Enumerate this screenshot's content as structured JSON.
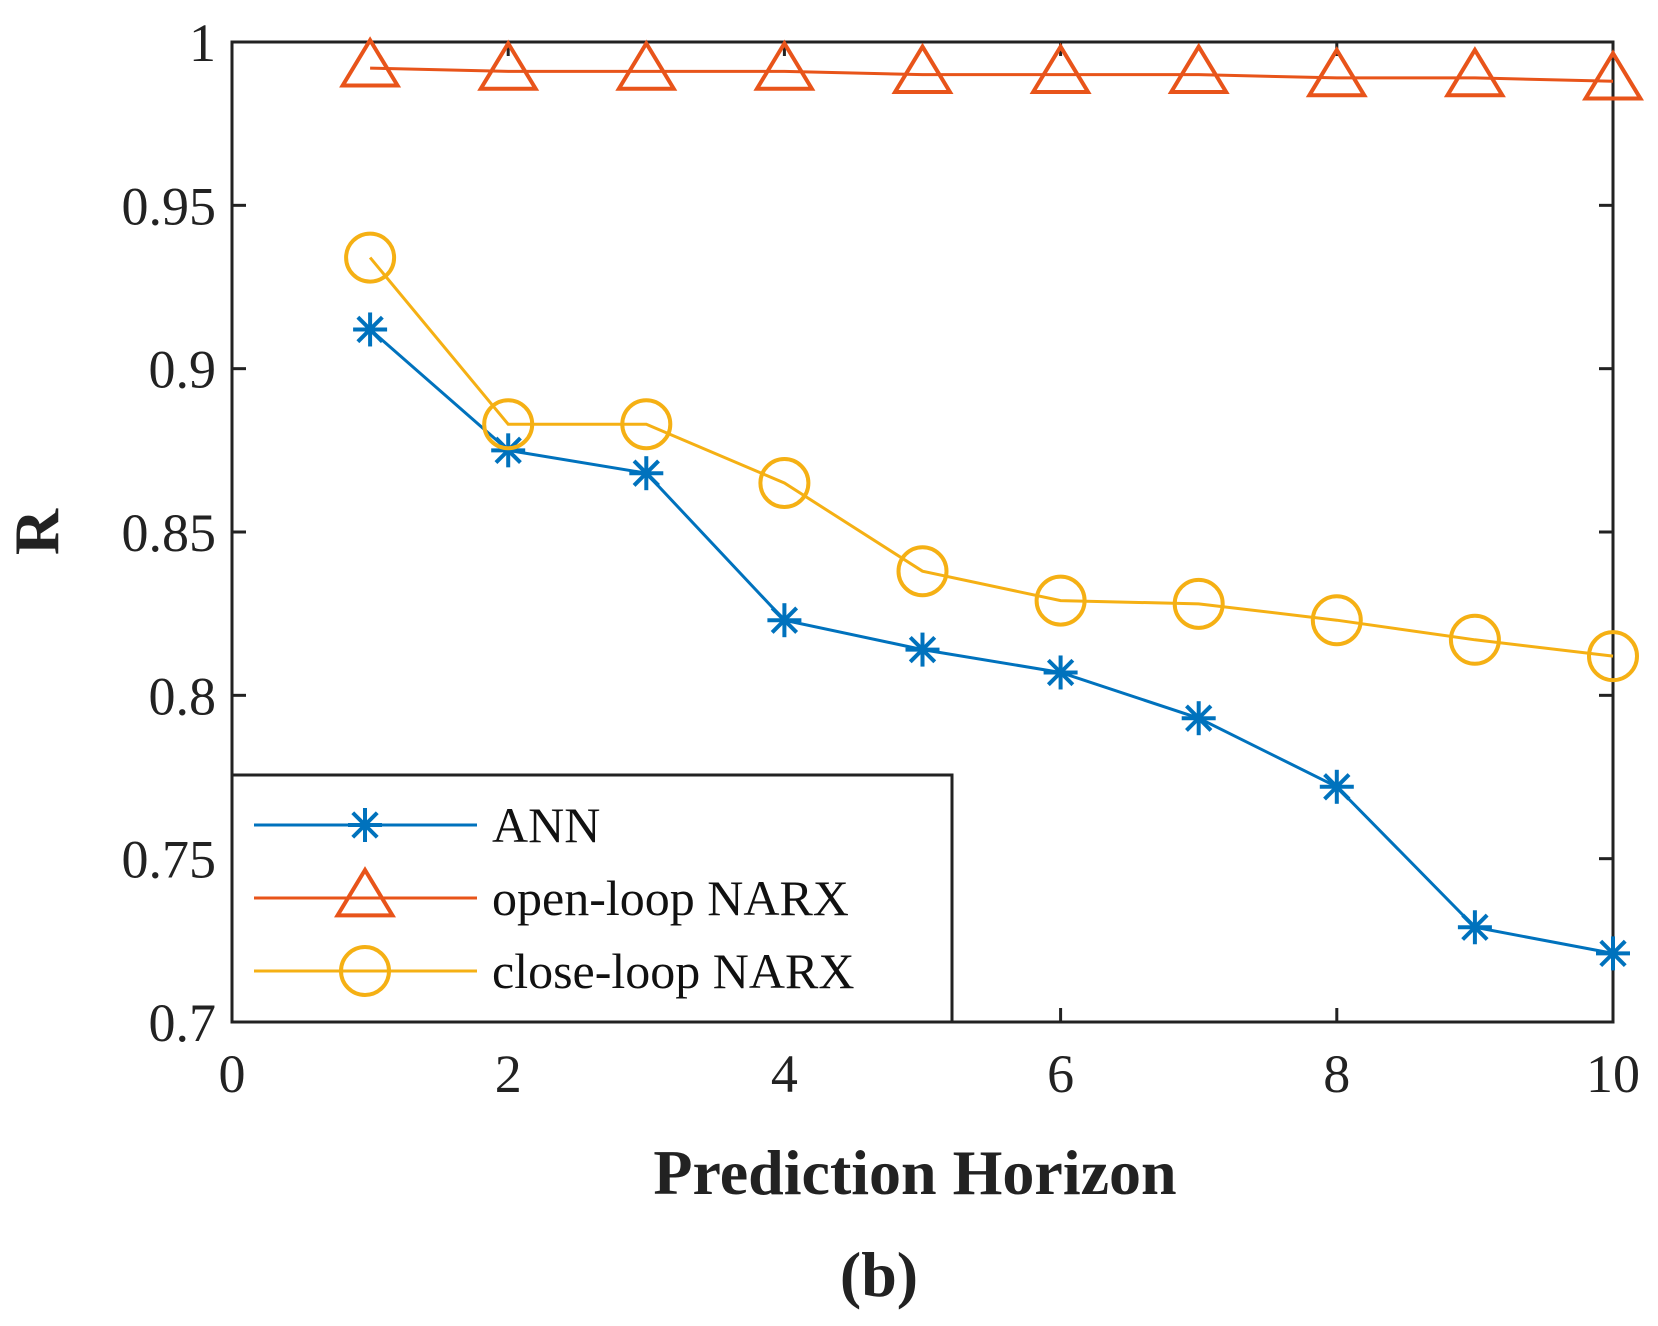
{
  "chart_data": {
    "type": "line",
    "panel_label": "(b)",
    "xlabel": "Prediction Horizon",
    "ylabel": "R",
    "xlim": [
      0,
      10
    ],
    "ylim": [
      0.7,
      1.0
    ],
    "xticks": [
      0,
      2,
      4,
      6,
      8,
      10
    ],
    "xtick_labels": [
      "0",
      "2",
      "4",
      "6",
      "8",
      "10"
    ],
    "yticks": [
      0.7,
      0.75,
      0.8,
      0.85,
      0.9,
      0.95,
      1.0
    ],
    "ytick_labels": [
      "0.7",
      "0.75",
      "0.8",
      "0.85",
      "0.9",
      "0.95",
      "1"
    ],
    "grid": false,
    "legend_position": "bottom-left",
    "x": [
      1,
      2,
      3,
      4,
      5,
      6,
      7,
      8,
      9,
      10
    ],
    "series": [
      {
        "name": "ANN",
        "marker": "star",
        "color": "#0072BD",
        "values": [
          0.912,
          0.875,
          0.868,
          0.823,
          0.814,
          0.807,
          0.793,
          0.772,
          0.729,
          0.721
        ]
      },
      {
        "name": "open-loop NARX",
        "marker": "triangle",
        "color": "#E8541A",
        "values": [
          0.992,
          0.991,
          0.991,
          0.991,
          0.99,
          0.99,
          0.99,
          0.989,
          0.989,
          0.988
        ]
      },
      {
        "name": "close-loop NARX",
        "marker": "circle",
        "color": "#F5B014",
        "values": [
          0.934,
          0.883,
          0.883,
          0.865,
          0.838,
          0.829,
          0.828,
          0.823,
          0.817,
          0.812
        ]
      }
    ]
  }
}
